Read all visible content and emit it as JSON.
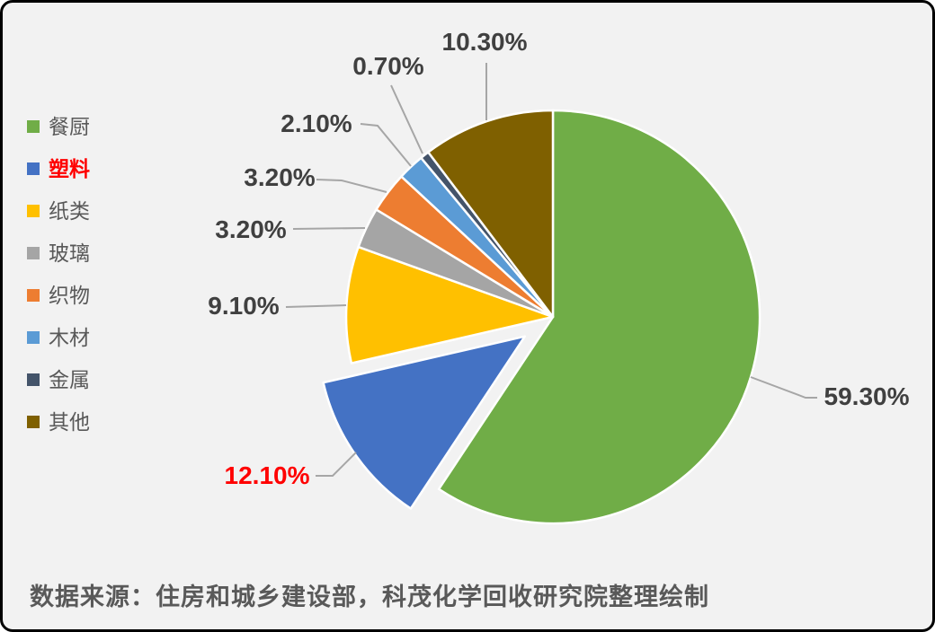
{
  "chart_data": {
    "type": "pie",
    "categories": [
      "餐厨",
      "塑料",
      "纸类",
      "玻璃",
      "织物",
      "木材",
      "金属",
      "其他"
    ],
    "values": [
      59.3,
      12.1,
      9.1,
      3.2,
      3.2,
      2.1,
      0.7,
      10.3
    ],
    "labels": [
      "59.30%",
      "12.10%",
      "9.10%",
      "3.20%",
      "3.20%",
      "2.10%",
      "0.70%",
      "10.30%"
    ],
    "colors": [
      "#70AD47",
      "#4472C4",
      "#FFC000",
      "#A5A5A5",
      "#ED7D31",
      "#5B9BD5",
      "#44546A",
      "#7F6000"
    ],
    "start_angle": 0,
    "direction": "clockwise",
    "exploded_index": 1,
    "highlighted_index": 1,
    "highlight_color": "#FF0000",
    "legend_position": "left",
    "label_color": "#404040",
    "leader_line_color": "#A6A6A6",
    "legend_text_color": "#595959",
    "slice_border_color": "#FFFFFF",
    "background_color": "#F2F2F2",
    "title": ""
  },
  "footer": {
    "source_text": "数据来源：住房和城乡建设部，科茂化学回收研究院整理绘制"
  }
}
